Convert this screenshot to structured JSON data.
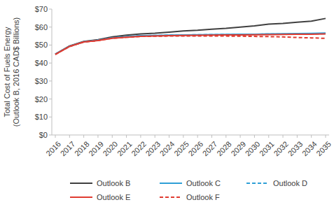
{
  "chart_data": {
    "type": "line",
    "y_label": [
      "Total Cost of Fuels Energy",
      "(Outlook B, 2016 CAD$ Billions)"
    ],
    "categories": [
      "2016",
      "2017",
      "2018",
      "2019",
      "2020",
      "2021",
      "2022",
      "2023",
      "2024",
      "2025",
      "2026",
      "2027",
      "2028",
      "2029",
      "2030",
      "2031",
      "2032",
      "2033",
      "2034",
      "2035"
    ],
    "series": [
      {
        "name": "Outlook B",
        "color": "#404040",
        "line_style": "solid",
        "values": [
          45,
          49.5,
          52,
          53,
          54.5,
          55.5,
          56.2,
          56.6,
          57.2,
          57.8,
          58.2,
          58.8,
          59.3,
          60,
          60.7,
          61.6,
          62,
          62.7,
          63.3,
          64.8
        ]
      },
      {
        "name": "Outlook C",
        "color": "#2e9fd6",
        "line_style": "solid",
        "values": [
          45,
          49.3,
          51.8,
          52.7,
          54,
          54.6,
          55.2,
          55.3,
          55.5,
          55.6,
          55.7,
          55.8,
          55.9,
          56,
          56,
          56.2,
          56.3,
          56.4,
          56.5,
          56.7
        ]
      },
      {
        "name": "Outlook D",
        "color": "#2e9fd6",
        "line_style": "dashed",
        "values": [
          45,
          49.3,
          51.8,
          52.7,
          54,
          54.6,
          55.2,
          55.3,
          55.5,
          55.6,
          55.7,
          55.8,
          55.9,
          56,
          56,
          56.1,
          56.1,
          56.2,
          56.2,
          56.3
        ]
      },
      {
        "name": "Outlook E",
        "color": "#e03c31",
        "line_style": "solid",
        "values": [
          44.8,
          49.2,
          51.7,
          52.5,
          53.8,
          54.3,
          54.8,
          55,
          55.2,
          55.3,
          55.4,
          55.5,
          55.6,
          55.6,
          55.7,
          55.8,
          55.9,
          56,
          56,
          56.2
        ]
      },
      {
        "name": "Outlook F",
        "color": "#e03c31",
        "line_style": "dashed",
        "values": [
          44.8,
          49.2,
          51.7,
          52.5,
          53.8,
          54.3,
          54.8,
          54.9,
          55,
          55,
          55,
          55,
          55,
          54.9,
          54.8,
          54.7,
          54.5,
          54.2,
          54,
          53.7
        ]
      }
    ],
    "ylim": [
      0,
      70
    ],
    "yticks": [
      {
        "value": 0,
        "label": "$0"
      },
      {
        "value": 10,
        "label": "$10"
      },
      {
        "value": 20,
        "label": "$20"
      },
      {
        "value": 30,
        "label": "$30"
      },
      {
        "value": 40,
        "label": "$40"
      },
      {
        "value": 50,
        "label": "$50"
      },
      {
        "value": 60,
        "label": "$60"
      },
      {
        "value": 70,
        "label": "$70"
      }
    ],
    "grid": false,
    "legend": "bottom"
  }
}
